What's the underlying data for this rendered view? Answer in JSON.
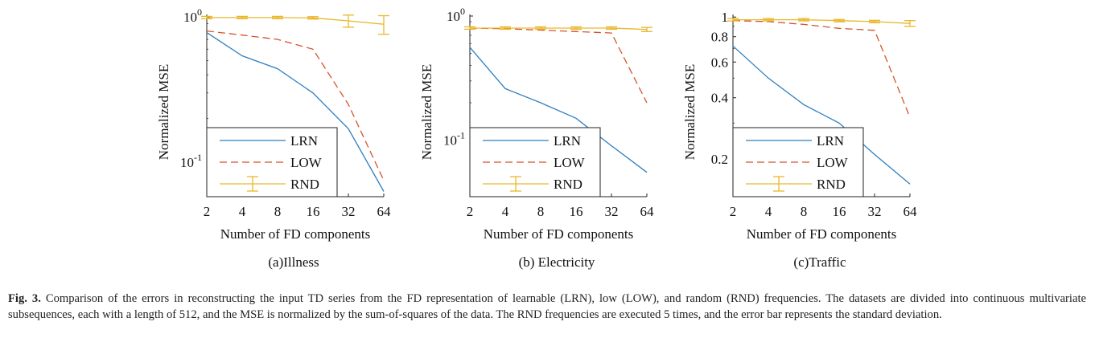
{
  "figure": {
    "caption_label": "Fig. 3.",
    "caption_text": " Comparison of the errors in reconstructing the input TD series from the FD representation of learnable (LRN), low (LOW), and random (RND) frequencies. The datasets are divided into continuous multivariate subsequences, each with a length of 512, and the MSE is normalized by the sum-of-squares of the data. The RND frequencies are executed 5 times, and the error bar represents the standard deviation."
  },
  "colors": {
    "lrn": "#2f7fc1",
    "low": "#d4532a",
    "rnd": "#eab62a",
    "axis": "#222222"
  },
  "chart_data": [
    {
      "type": "line",
      "subtitle": "(a)Illness",
      "xlabel": "Number of FD components",
      "ylabel": "Normalized MSE",
      "xscale": "log2",
      "yscale": "log10",
      "x": [
        2,
        4,
        8,
        16,
        32,
        64
      ],
      "x_tick_labels": [
        "2",
        "4",
        "8",
        "16",
        "32",
        "64"
      ],
      "ylim": [
        0.058,
        1.04
      ],
      "y_ticks": [
        {
          "value": 1,
          "base": "10",
          "exp": "0"
        },
        {
          "value": 0.1,
          "base": "10",
          "exp": "-1"
        }
      ],
      "legend_loc": "bottom-left",
      "series": [
        {
          "name": "LRN",
          "style": "solid",
          "color_key": "lrn",
          "values": [
            0.78,
            0.54,
            0.44,
            0.3,
            0.17,
            0.063
          ]
        },
        {
          "name": "LOW",
          "style": "dashed",
          "color_key": "low",
          "values": [
            0.8,
            0.75,
            0.7,
            0.6,
            0.25,
            0.075
          ]
        },
        {
          "name": "RND",
          "style": "errorbar",
          "color_key": "rnd",
          "values": [
            0.99,
            0.99,
            0.99,
            0.985,
            0.94,
            0.89
          ],
          "errors": [
            0,
            0,
            0,
            0,
            0.09,
            0.13
          ]
        }
      ]
    },
    {
      "type": "line",
      "subtitle": "(b) Electricity",
      "xlabel": "Number of FD components",
      "ylabel": "Normalized MSE",
      "xscale": "log2",
      "yscale": "log10",
      "x": [
        2,
        4,
        8,
        16,
        32,
        64
      ],
      "x_tick_labels": [
        "2",
        "4",
        "8",
        "16",
        "32",
        "64"
      ],
      "ylim": [
        0.035,
        1.03
      ],
      "y_ticks": [
        {
          "value": 1,
          "base": "10",
          "exp": "0"
        },
        {
          "value": 0.1,
          "base": "10",
          "exp": "-1"
        }
      ],
      "legend_loc": "bottom-left",
      "series": [
        {
          "name": "LRN",
          "style": "solid",
          "color_key": "lrn",
          "values": [
            0.56,
            0.26,
            0.2,
            0.15,
            0.09,
            0.055
          ]
        },
        {
          "name": "LOW",
          "style": "dashed",
          "color_key": "low",
          "values": [
            0.8,
            0.79,
            0.77,
            0.75,
            0.73,
            0.2
          ]
        },
        {
          "name": "RND",
          "style": "errorbar",
          "color_key": "rnd",
          "values": [
            0.8,
            0.8,
            0.8,
            0.8,
            0.8,
            0.78
          ],
          "errors": [
            0,
            0,
            0,
            0,
            0,
            0.03
          ]
        }
      ]
    },
    {
      "type": "line",
      "subtitle": "(c)Traffic",
      "xlabel": "Number of FD components",
      "ylabel": "Normalized MSE",
      "xscale": "log2",
      "yscale": "log10",
      "x": [
        2,
        4,
        8,
        16,
        32,
        64
      ],
      "x_tick_labels": [
        "2",
        "4",
        "8",
        "16",
        "32",
        "64"
      ],
      "ylim": [
        0.13,
        1.03
      ],
      "y_ticks": [
        {
          "value": 1,
          "label": "1"
        },
        {
          "value": 0.8,
          "label": "0.8"
        },
        {
          "value": 0.6,
          "label": "0.6"
        },
        {
          "value": 0.4,
          "label": "0.4"
        },
        {
          "value": 0.2,
          "label": "0.2"
        }
      ],
      "legend_loc": "bottom-left",
      "series": [
        {
          "name": "LRN",
          "style": "solid",
          "color_key": "lrn",
          "values": [
            0.72,
            0.5,
            0.37,
            0.3,
            0.21,
            0.15
          ]
        },
        {
          "name": "LOW",
          "style": "dashed",
          "color_key": "low",
          "values": [
            0.96,
            0.95,
            0.92,
            0.88,
            0.86,
            0.32
          ]
        },
        {
          "name": "RND",
          "style": "errorbar",
          "color_key": "rnd",
          "values": [
            0.97,
            0.97,
            0.97,
            0.96,
            0.95,
            0.93
          ],
          "errors": [
            0,
            0,
            0,
            0,
            0,
            0.03
          ]
        }
      ]
    }
  ]
}
